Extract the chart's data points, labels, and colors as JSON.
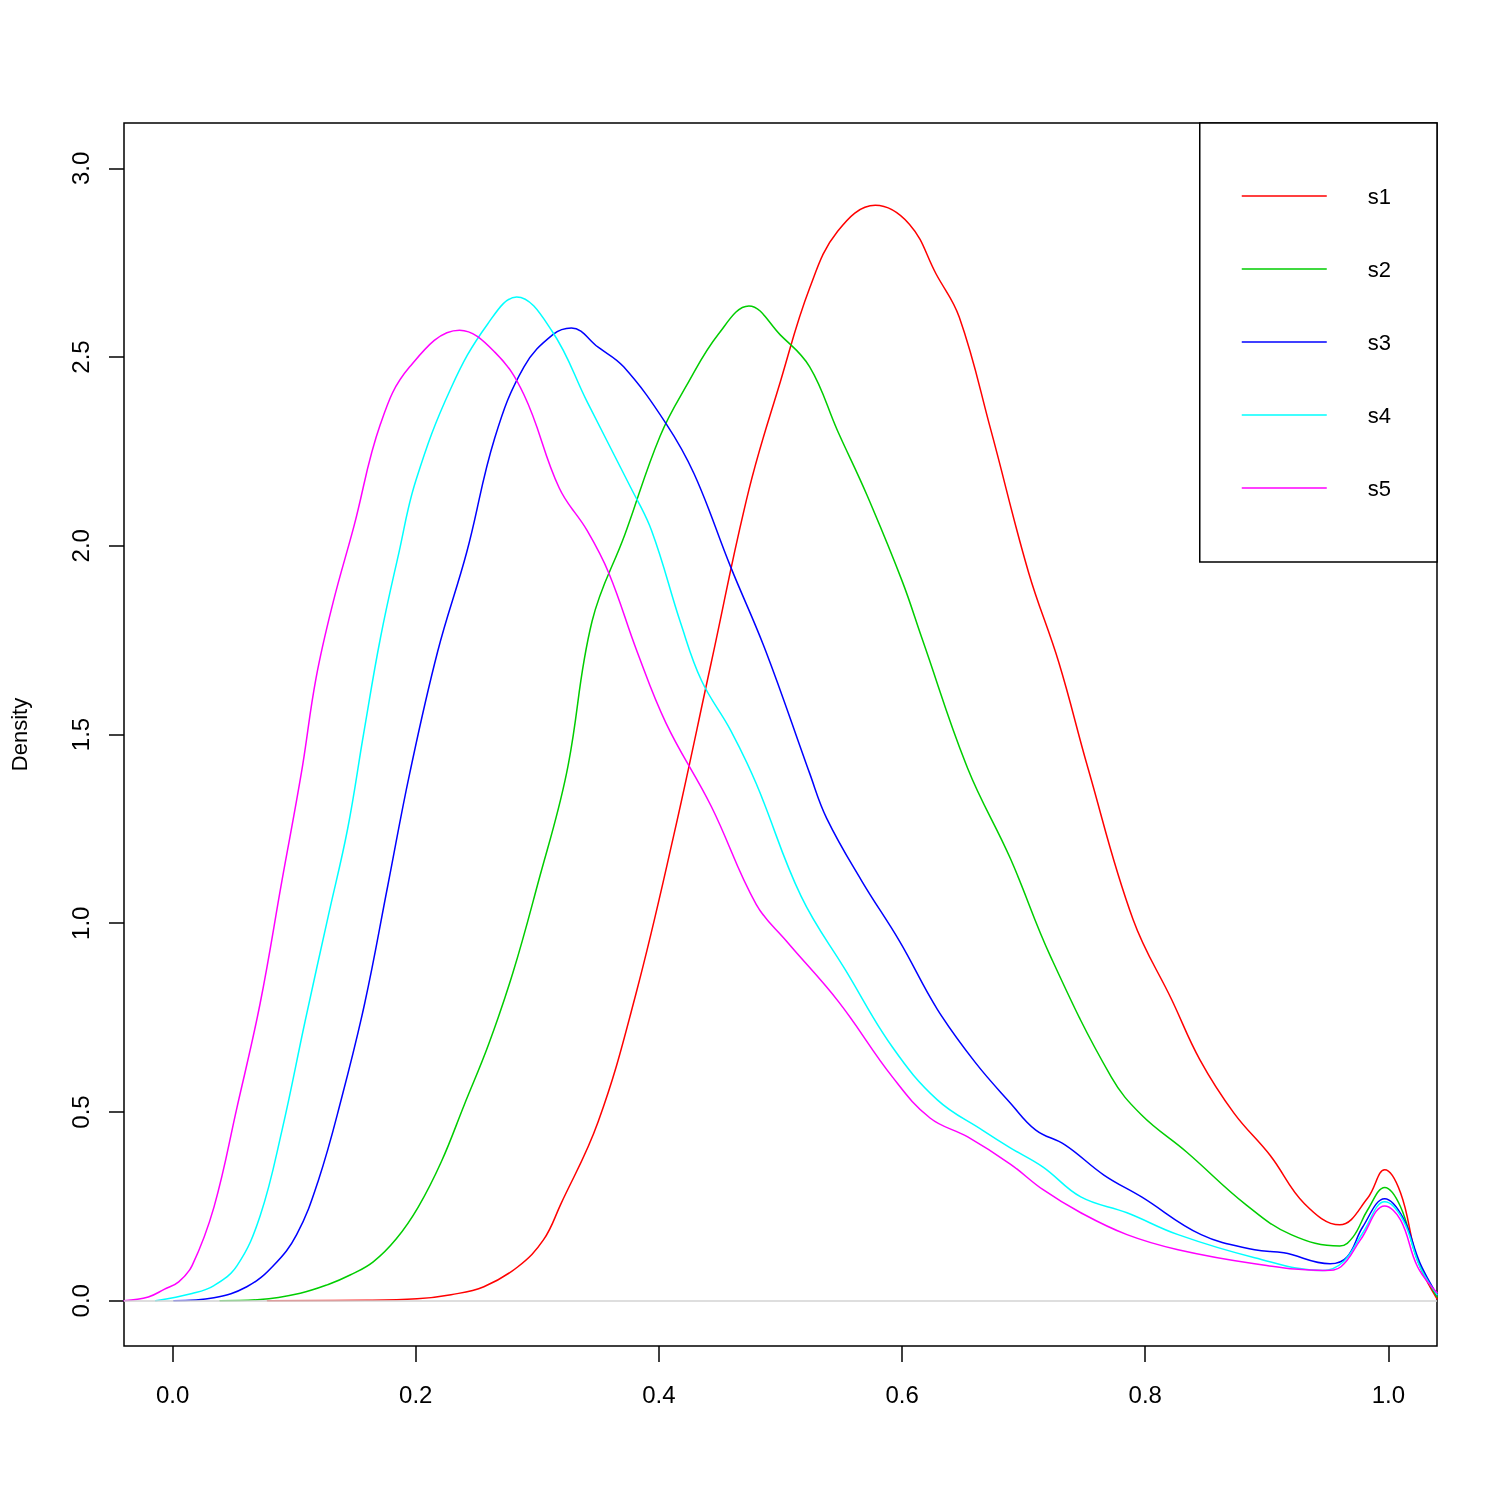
{
  "chart_data": {
    "type": "line",
    "ylabel": "Density",
    "xlim": [
      -0.04,
      1.04
    ],
    "xticks": [
      {
        "value": 0,
        "label": "0.0"
      },
      0.2,
      0.4,
      0.6,
      0.8,
      {
        "value": 1,
        "label": "1.0"
      }
    ],
    "ylim": [
      -0.12,
      3.12
    ],
    "yticks": [
      {
        "value": 0,
        "label": "0.0"
      },
      0.5,
      {
        "value": 1,
        "label": "1.0"
      },
      1.5,
      {
        "value": 2,
        "label": "2.0"
      },
      2.5,
      {
        "value": 3,
        "label": "3.0"
      }
    ],
    "legend": "top right",
    "marker": "none",
    "line_style": "solid",
    "ref_lines": [
      {
        "axis": "y",
        "value": 0,
        "color": "#d3d3d3"
      }
    ],
    "series": [
      {
        "name": "s1",
        "color": "#ff0000",
        "x": [
          0.078,
          0.16,
          0.201,
          0.229,
          0.256,
          0.284,
          0.305,
          0.319,
          0.35,
          0.381,
          0.412,
          0.443,
          0.474,
          0.5,
          0.524,
          0.547,
          0.578,
          0.606,
          0.628,
          0.647,
          0.673,
          0.704,
          0.729,
          0.753,
          0.79,
          0.822,
          0.845,
          0.873,
          0.903,
          0.931,
          0.96,
          0.983,
          0.997,
          1.01,
          1.024,
          1.04
        ],
        "values": [
          0,
          0.001,
          0.005,
          0.016,
          0.037,
          0.09,
          0.161,
          0.254,
          0.474,
          0.812,
          1.23,
          1.69,
          2.148,
          2.436,
          2.683,
          2.833,
          2.902,
          2.852,
          2.72,
          2.606,
          2.307,
          1.93,
          1.69,
          1.41,
          1.01,
          0.796,
          0.638,
          0.497,
          0.384,
          0.257,
          0.201,
          0.272,
          0.347,
          0.286,
          0.108,
          0.005
        ]
      },
      {
        "name": "s2",
        "color": "#00cd00",
        "x": [
          0.039,
          0.072,
          0.105,
          0.128,
          0.146,
          0.165,
          0.184,
          0.202,
          0.221,
          0.24,
          0.26,
          0.28,
          0.3,
          0.324,
          0.345,
          0.372,
          0.401,
          0.423,
          0.449,
          0.474,
          0.5,
          0.524,
          0.547,
          0.571,
          0.6,
          0.617,
          0.654,
          0.689,
          0.722,
          0.772,
          0.797,
          0.834,
          0.883,
          0.92,
          0.96,
          0.971,
          0.983,
          0.997,
          1.01,
          1.024,
          1.04
        ],
        "values": [
          0,
          0.003,
          0.02,
          0.043,
          0.068,
          0.103,
          0.164,
          0.248,
          0.368,
          0.52,
          0.68,
          0.87,
          1.1,
          1.397,
          1.8,
          2.03,
          2.291,
          2.426,
          2.561,
          2.635,
          2.558,
          2.474,
          2.304,
          2.135,
          1.907,
          1.749,
          1.41,
          1.172,
          0.913,
          0.593,
          0.492,
          0.394,
          0.254,
          0.175,
          0.145,
          0.169,
          0.241,
          0.3,
          0.249,
          0.108,
          0.01
        ]
      },
      {
        "name": "s3",
        "color": "#0000ff",
        "x": [
          0.001,
          0.034,
          0.061,
          0.083,
          0.102,
          0.12,
          0.139,
          0.158,
          0.177,
          0.195,
          0.218,
          0.242,
          0.265,
          0.289,
          0.313,
          0.328,
          0.35,
          0.371,
          0.406,
          0.429,
          0.459,
          0.488,
          0.524,
          0.538,
          0.567,
          0.598,
          0.629,
          0.66,
          0.689,
          0.71,
          0.734,
          0.766,
          0.797,
          0.846,
          0.89,
          0.914,
          0.952,
          0.966,
          0.979,
          0.997,
          1.012,
          1.026,
          1.04
        ],
        "values": [
          0,
          0.008,
          0.037,
          0.093,
          0.175,
          0.32,
          0.537,
          0.788,
          1.1,
          1.397,
          1.72,
          1.984,
          2.286,
          2.474,
          2.56,
          2.577,
          2.526,
          2.474,
          2.323,
          2.19,
          1.944,
          1.72,
          1.397,
          1.278,
          1.111,
          0.952,
          0.772,
          0.632,
          0.524,
          0.452,
          0.413,
          0.333,
          0.275,
          0.175,
          0.135,
          0.127,
          0.098,
          0.116,
          0.196,
          0.27,
          0.22,
          0.1,
          0.016
        ]
      },
      {
        "name": "s4",
        "color": "#00ffff",
        "x": [
          -0.014,
          0.016,
          0.034,
          0.053,
          0.072,
          0.09,
          0.109,
          0.128,
          0.144,
          0.157,
          0.171,
          0.186,
          0.2,
          0.229,
          0.259,
          0.283,
          0.312,
          0.341,
          0.377,
          0.394,
          0.418,
          0.435,
          0.459,
          0.48,
          0.517,
          0.554,
          0.592,
          0.629,
          0.666,
          0.689,
          0.716,
          0.747,
          0.785,
          0.827,
          0.89,
          0.946,
          0.963,
          0.979,
          0.997,
          1.012,
          1.026,
          1.04
        ],
        "values": [
          0,
          0.019,
          0.04,
          0.093,
          0.225,
          0.452,
          0.741,
          1.019,
          1.251,
          1.5,
          1.757,
          1.98,
          2.172,
          2.418,
          2.587,
          2.659,
          2.569,
          2.381,
          2.153,
          2.04,
          1.794,
          1.643,
          1.511,
          1.37,
          1.071,
          0.873,
          0.672,
          0.532,
          0.452,
          0.405,
          0.354,
          0.275,
          0.233,
          0.175,
          0.114,
          0.08,
          0.103,
          0.18,
          0.262,
          0.214,
          0.09,
          0.016
        ]
      },
      {
        "name": "s5",
        "color": "#ff00ff",
        "x": [
          -0.04,
          -0.02,
          -0.007,
          0.005,
          0.016,
          0.034,
          0.053,
          0.072,
          0.09,
          0.106,
          0.118,
          0.132,
          0.149,
          0.171,
          0.195,
          0.236,
          0.265,
          0.289,
          0.318,
          0.341,
          0.359,
          0.382,
          0.406,
          0.443,
          0.48,
          0.505,
          0.548,
          0.592,
          0.623,
          0.654,
          0.689,
          0.716,
          0.747,
          0.785,
          0.827,
          0.89,
          0.948,
          0.961,
          0.977,
          0.997,
          1.01,
          1.024,
          1.04
        ],
        "values": [
          0,
          0.01,
          0.03,
          0.05,
          0.093,
          0.248,
          0.513,
          0.788,
          1.114,
          1.4,
          1.65,
          1.85,
          2.05,
          2.323,
          2.474,
          2.571,
          2.513,
          2.4,
          2.153,
          2.04,
          1.926,
          1.72,
          1.529,
          1.31,
          1.05,
          0.952,
          0.791,
          0.593,
          0.484,
          0.434,
          0.362,
          0.294,
          0.233,
          0.175,
          0.135,
          0.098,
          0.08,
          0.09,
          0.161,
          0.251,
          0.214,
          0.09,
          0.021
        ]
      }
    ]
  }
}
